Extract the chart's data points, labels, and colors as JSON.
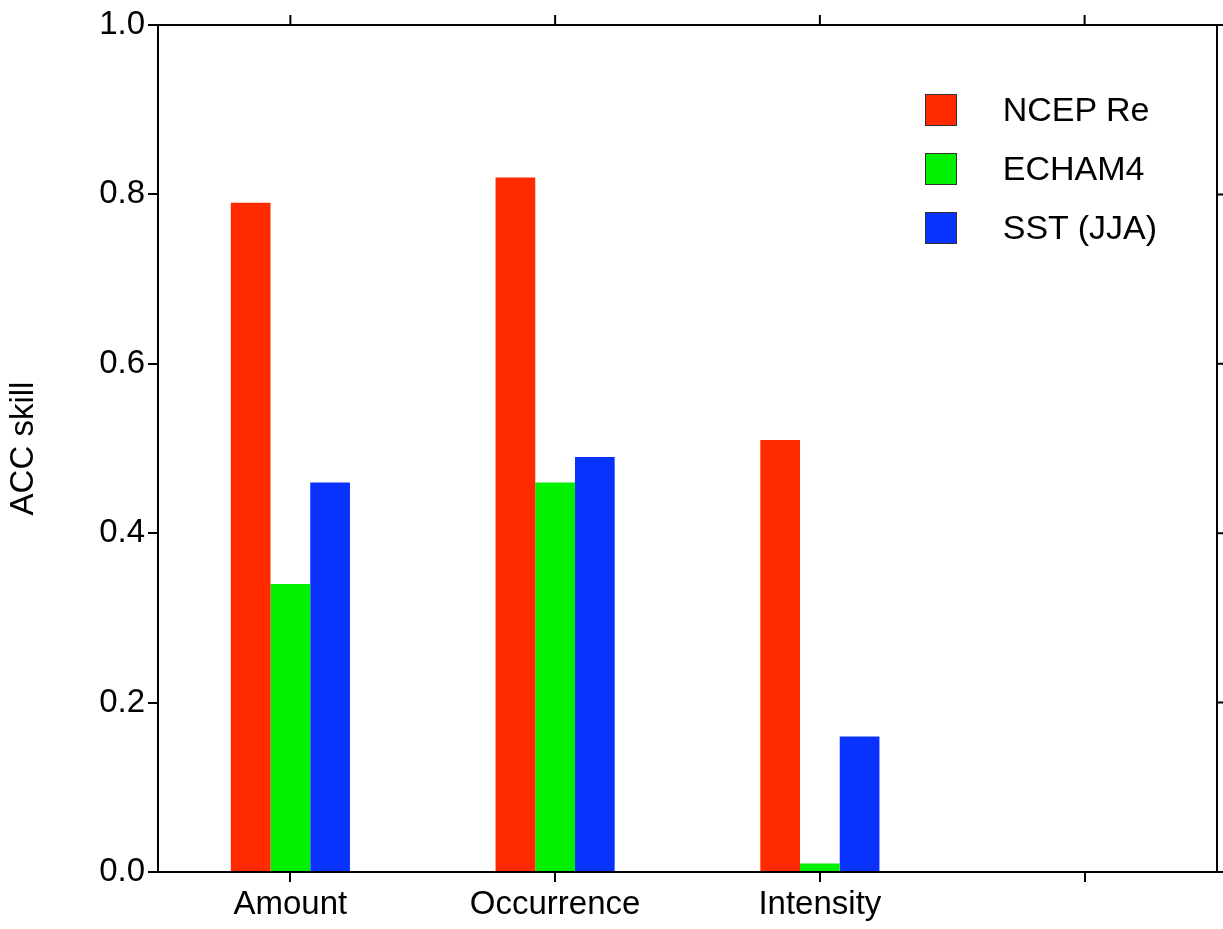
{
  "chart_data": {
    "type": "bar",
    "ylabel": "ACC skill",
    "categories": [
      "Amount",
      "Occurrence",
      "Intensity",
      null
    ],
    "series": [
      {
        "name": "NCEP Re",
        "color": "#ff2a00",
        "values": [
          0.79,
          0.82,
          0.51,
          null
        ]
      },
      {
        "name": "ECHAM4",
        "color": "#00f000",
        "values": [
          0.34,
          0.46,
          0.01,
          null
        ]
      },
      {
        "name": "SST (JJA)",
        "color": "#0a32ff",
        "values": [
          0.46,
          0.49,
          0.16,
          null
        ]
      }
    ],
    "ylim": [
      0,
      1
    ],
    "yticks": [
      {
        "value": 0,
        "label": "0.0"
      },
      0.2,
      0.4,
      0.6,
      0.8,
      {
        "value": 1,
        "label": "1.0"
      }
    ],
    "grid": false,
    "legend": "top right"
  }
}
